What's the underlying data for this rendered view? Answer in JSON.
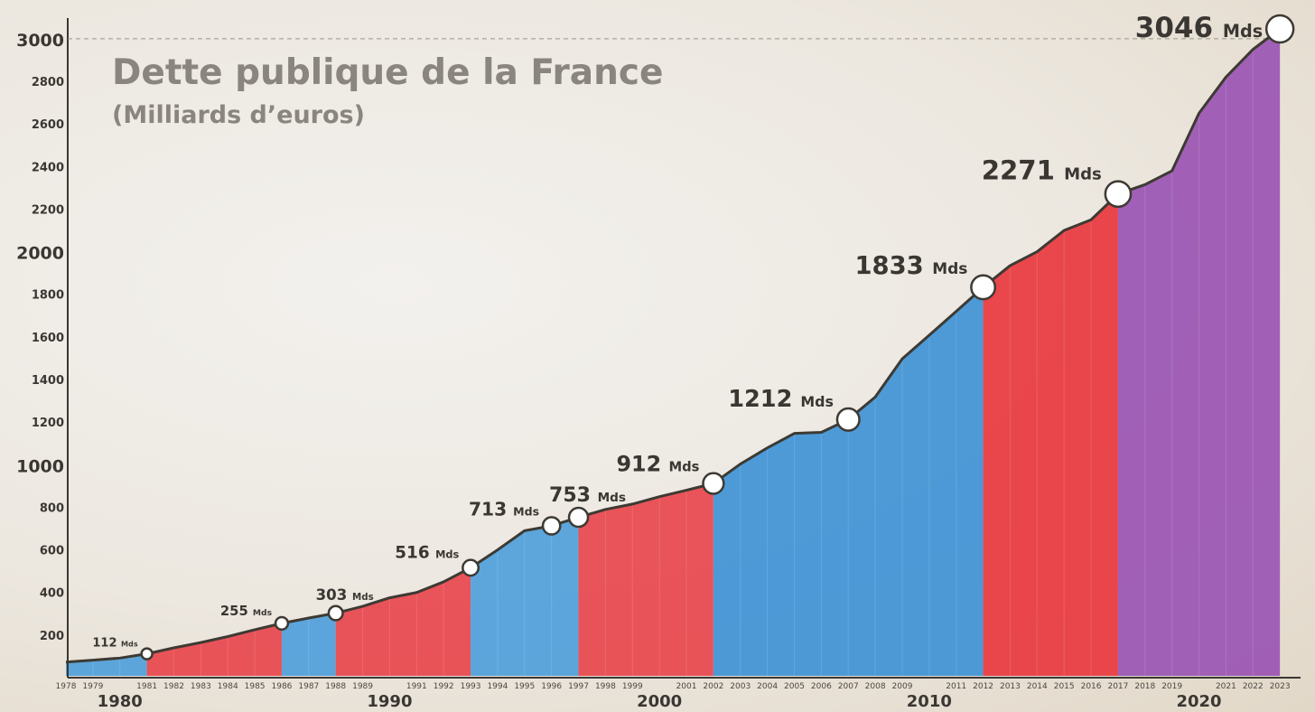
{
  "chart_data": {
    "type": "area",
    "title": "Dette publique de la France",
    "subtitle": "(Milliards d’euros)",
    "ylim": [
      0,
      3000
    ],
    "yticks": [
      200,
      400,
      600,
      800,
      1000,
      1200,
      1400,
      1600,
      1800,
      2000,
      2200,
      2400,
      2600,
      2800,
      3000
    ],
    "yticks_bold": [
      1000,
      2000,
      3000
    ],
    "x_minor_labels": [
      "1978",
      "1979",
      "1981",
      "1982",
      "1983",
      "1984",
      "1985",
      "1986",
      "1987",
      "1988",
      "1989",
      "1991",
      "1992",
      "1993",
      "1994",
      "1995",
      "1996",
      "1997",
      "1998",
      "1999",
      "2001",
      "2002",
      "2003",
      "2004",
      "2005",
      "2006",
      "2007",
      "2008",
      "2009",
      "2011",
      "2012",
      "2013",
      "2014",
      "2015",
      "2016",
      "2017",
      "2018",
      "2019",
      "2021",
      "2022",
      "2023"
    ],
    "x_major_labels": [
      "1980",
      "1990",
      "2000",
      "2010",
      "2020"
    ],
    "x": [
      1978,
      1979,
      1980,
      1981,
      1982,
      1983,
      1984,
      1985,
      1986,
      1987,
      1988,
      1989,
      1990,
      1991,
      1992,
      1993,
      1994,
      1995,
      1996,
      1997,
      1998,
      1999,
      2000,
      2001,
      2002,
      2003,
      2004,
      2005,
      2006,
      2007,
      2008,
      2009,
      2010,
      2011,
      2012,
      2013,
      2014,
      2015,
      2016,
      2017,
      2018,
      2019,
      2020,
      2021,
      2022,
      2023
    ],
    "values": [
      73,
      82,
      92,
      112,
      140,
      165,
      193,
      225,
      255,
      280,
      303,
      335,
      375,
      400,
      450,
      516,
      600,
      690,
      713,
      753,
      790,
      815,
      850,
      880,
      912,
      1003,
      1079,
      1147,
      1152,
      1212,
      1318,
      1497,
      1608,
      1720,
      1833,
      1935,
      2000,
      2100,
      2150,
      2271,
      2315,
      2380,
      2650,
      2820,
      2950,
      3046
    ],
    "annotations": [
      {
        "year": 1981,
        "value": 112,
        "label": "112",
        "unit": "Mds"
      },
      {
        "year": 1986,
        "value": 255,
        "label": "255",
        "unit": "Mds"
      },
      {
        "year": 1988,
        "value": 303,
        "label": "303",
        "unit": "Mds"
      },
      {
        "year": 1993,
        "value": 516,
        "label": "516",
        "unit": "Mds"
      },
      {
        "year": 1996,
        "value": 713,
        "label": "713",
        "unit": "Mds"
      },
      {
        "year": 1997,
        "value": 753,
        "label": "753",
        "unit": "Mds"
      },
      {
        "year": 2002,
        "value": 912,
        "label": "912",
        "unit": "Mds"
      },
      {
        "year": 2007,
        "value": 1212,
        "label": "1212",
        "unit": "Mds"
      },
      {
        "year": 2012,
        "value": 1833,
        "label": "1833",
        "unit": "Mds"
      },
      {
        "year": 2017,
        "value": 2271,
        "label": "2271",
        "unit": "Mds"
      },
      {
        "year": 2023,
        "value": 3046,
        "label": "3046",
        "unit": "Mds"
      }
    ],
    "bands": [
      {
        "from": 1978,
        "to": 1981,
        "color": "#4f9fdb"
      },
      {
        "from": 1981,
        "to": 1986,
        "color": "#e7474d"
      },
      {
        "from": 1986,
        "to": 1988,
        "color": "#4f9fdb"
      },
      {
        "from": 1988,
        "to": 1993,
        "color": "#e7474d"
      },
      {
        "from": 1993,
        "to": 1997,
        "color": "#4f9fdb"
      },
      {
        "from": 1997,
        "to": 2002,
        "color": "#e7474d"
      },
      {
        "from": 2002,
        "to": 2012,
        "color": "#3f92d6"
      },
      {
        "from": 2012,
        "to": 2017,
        "color": "#e8383f"
      },
      {
        "from": 2017,
        "to": 2023,
        "color": "#9a55b3"
      }
    ],
    "reference_line": 3000,
    "grid": false,
    "colors": {
      "text": "#3a3733",
      "title": "#8a857e",
      "line": "#3d3a33"
    }
  }
}
